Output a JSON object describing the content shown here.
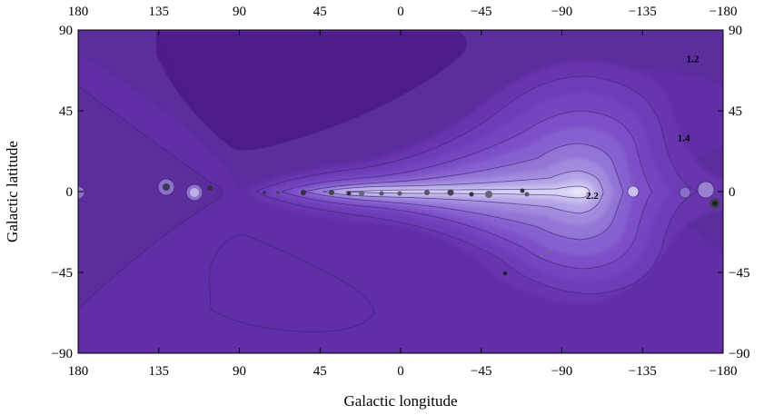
{
  "chart_data": {
    "type": "heatmap",
    "subtype": "filled-contour",
    "title": "",
    "xlabel": "Galactic longitude",
    "ylabel": "Galactic latitude",
    "xlim": [
      180,
      -180
    ],
    "ylim": [
      -90,
      90
    ],
    "x_ticks": [
      "180",
      "135",
      "90",
      "45",
      "0",
      "−45",
      "−90",
      "−135",
      "−180"
    ],
    "x_tick_values": [
      180,
      135,
      90,
      45,
      0,
      -45,
      -90,
      -135,
      -180
    ],
    "y_ticks": [
      "90",
      "45",
      "0",
      "−45",
      "−90"
    ],
    "y_tick_values": [
      90,
      45,
      0,
      -45,
      -90
    ],
    "contour_labels": [
      {
        "text": "1.2",
        "l": -163,
        "b": 74
      },
      {
        "text": "1.4",
        "l": -158,
        "b": 30
      },
      {
        "text": "2.2",
        "l": -107,
        "b": -2
      }
    ],
    "colormap": {
      "low": "#4c1a8c",
      "high": "#dfe3f4"
    },
    "grid": false,
    "legend": "none"
  }
}
